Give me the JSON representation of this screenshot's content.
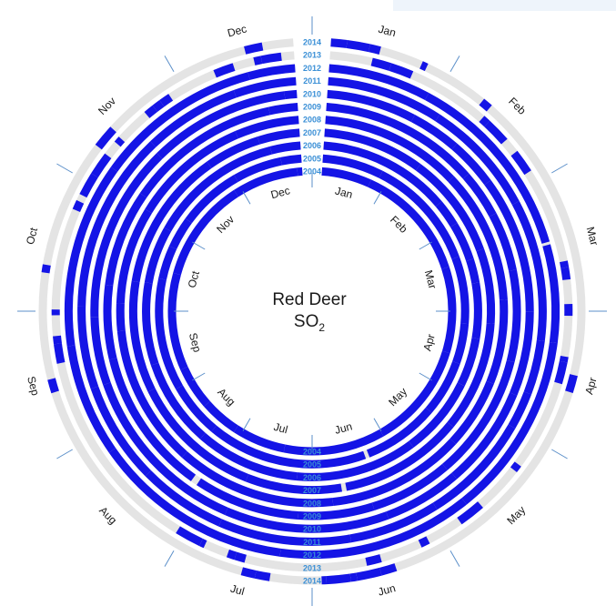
{
  "chart_data": {
    "type": "radial-calendar",
    "title_line1": "Red Deer",
    "title_line2": "SO",
    "title_sub": "2",
    "years": [
      "2004",
      "2005",
      "2006",
      "2007",
      "2008",
      "2009",
      "2010",
      "2011",
      "2012",
      "2013",
      "2014"
    ],
    "inner_month_labels": [
      "Jan",
      "Feb",
      "Mar",
      "Apr",
      "May",
      "Jun",
      "Jul",
      "Aug",
      "Sep",
      "Oct",
      "Nov",
      "Dec"
    ],
    "outer_month_labels": [
      "Jan",
      "Feb",
      "Mar",
      "Apr",
      "May",
      "Jun",
      "Jul",
      "Aug",
      "Sep",
      "Oct",
      "Nov",
      "Dec"
    ],
    "data_coverage": [
      0.93,
      0.95,
      0.92,
      0.94,
      0.95,
      0.96,
      0.97,
      0.96,
      0.86,
      0.45,
      0.3
    ],
    "colors": {
      "data": "#1414e6",
      "year_label": "#3a8fd6",
      "ring_background": "#e4e4e4",
      "tick": "#5b8fc9",
      "text": "#1a1a1a"
    }
  }
}
